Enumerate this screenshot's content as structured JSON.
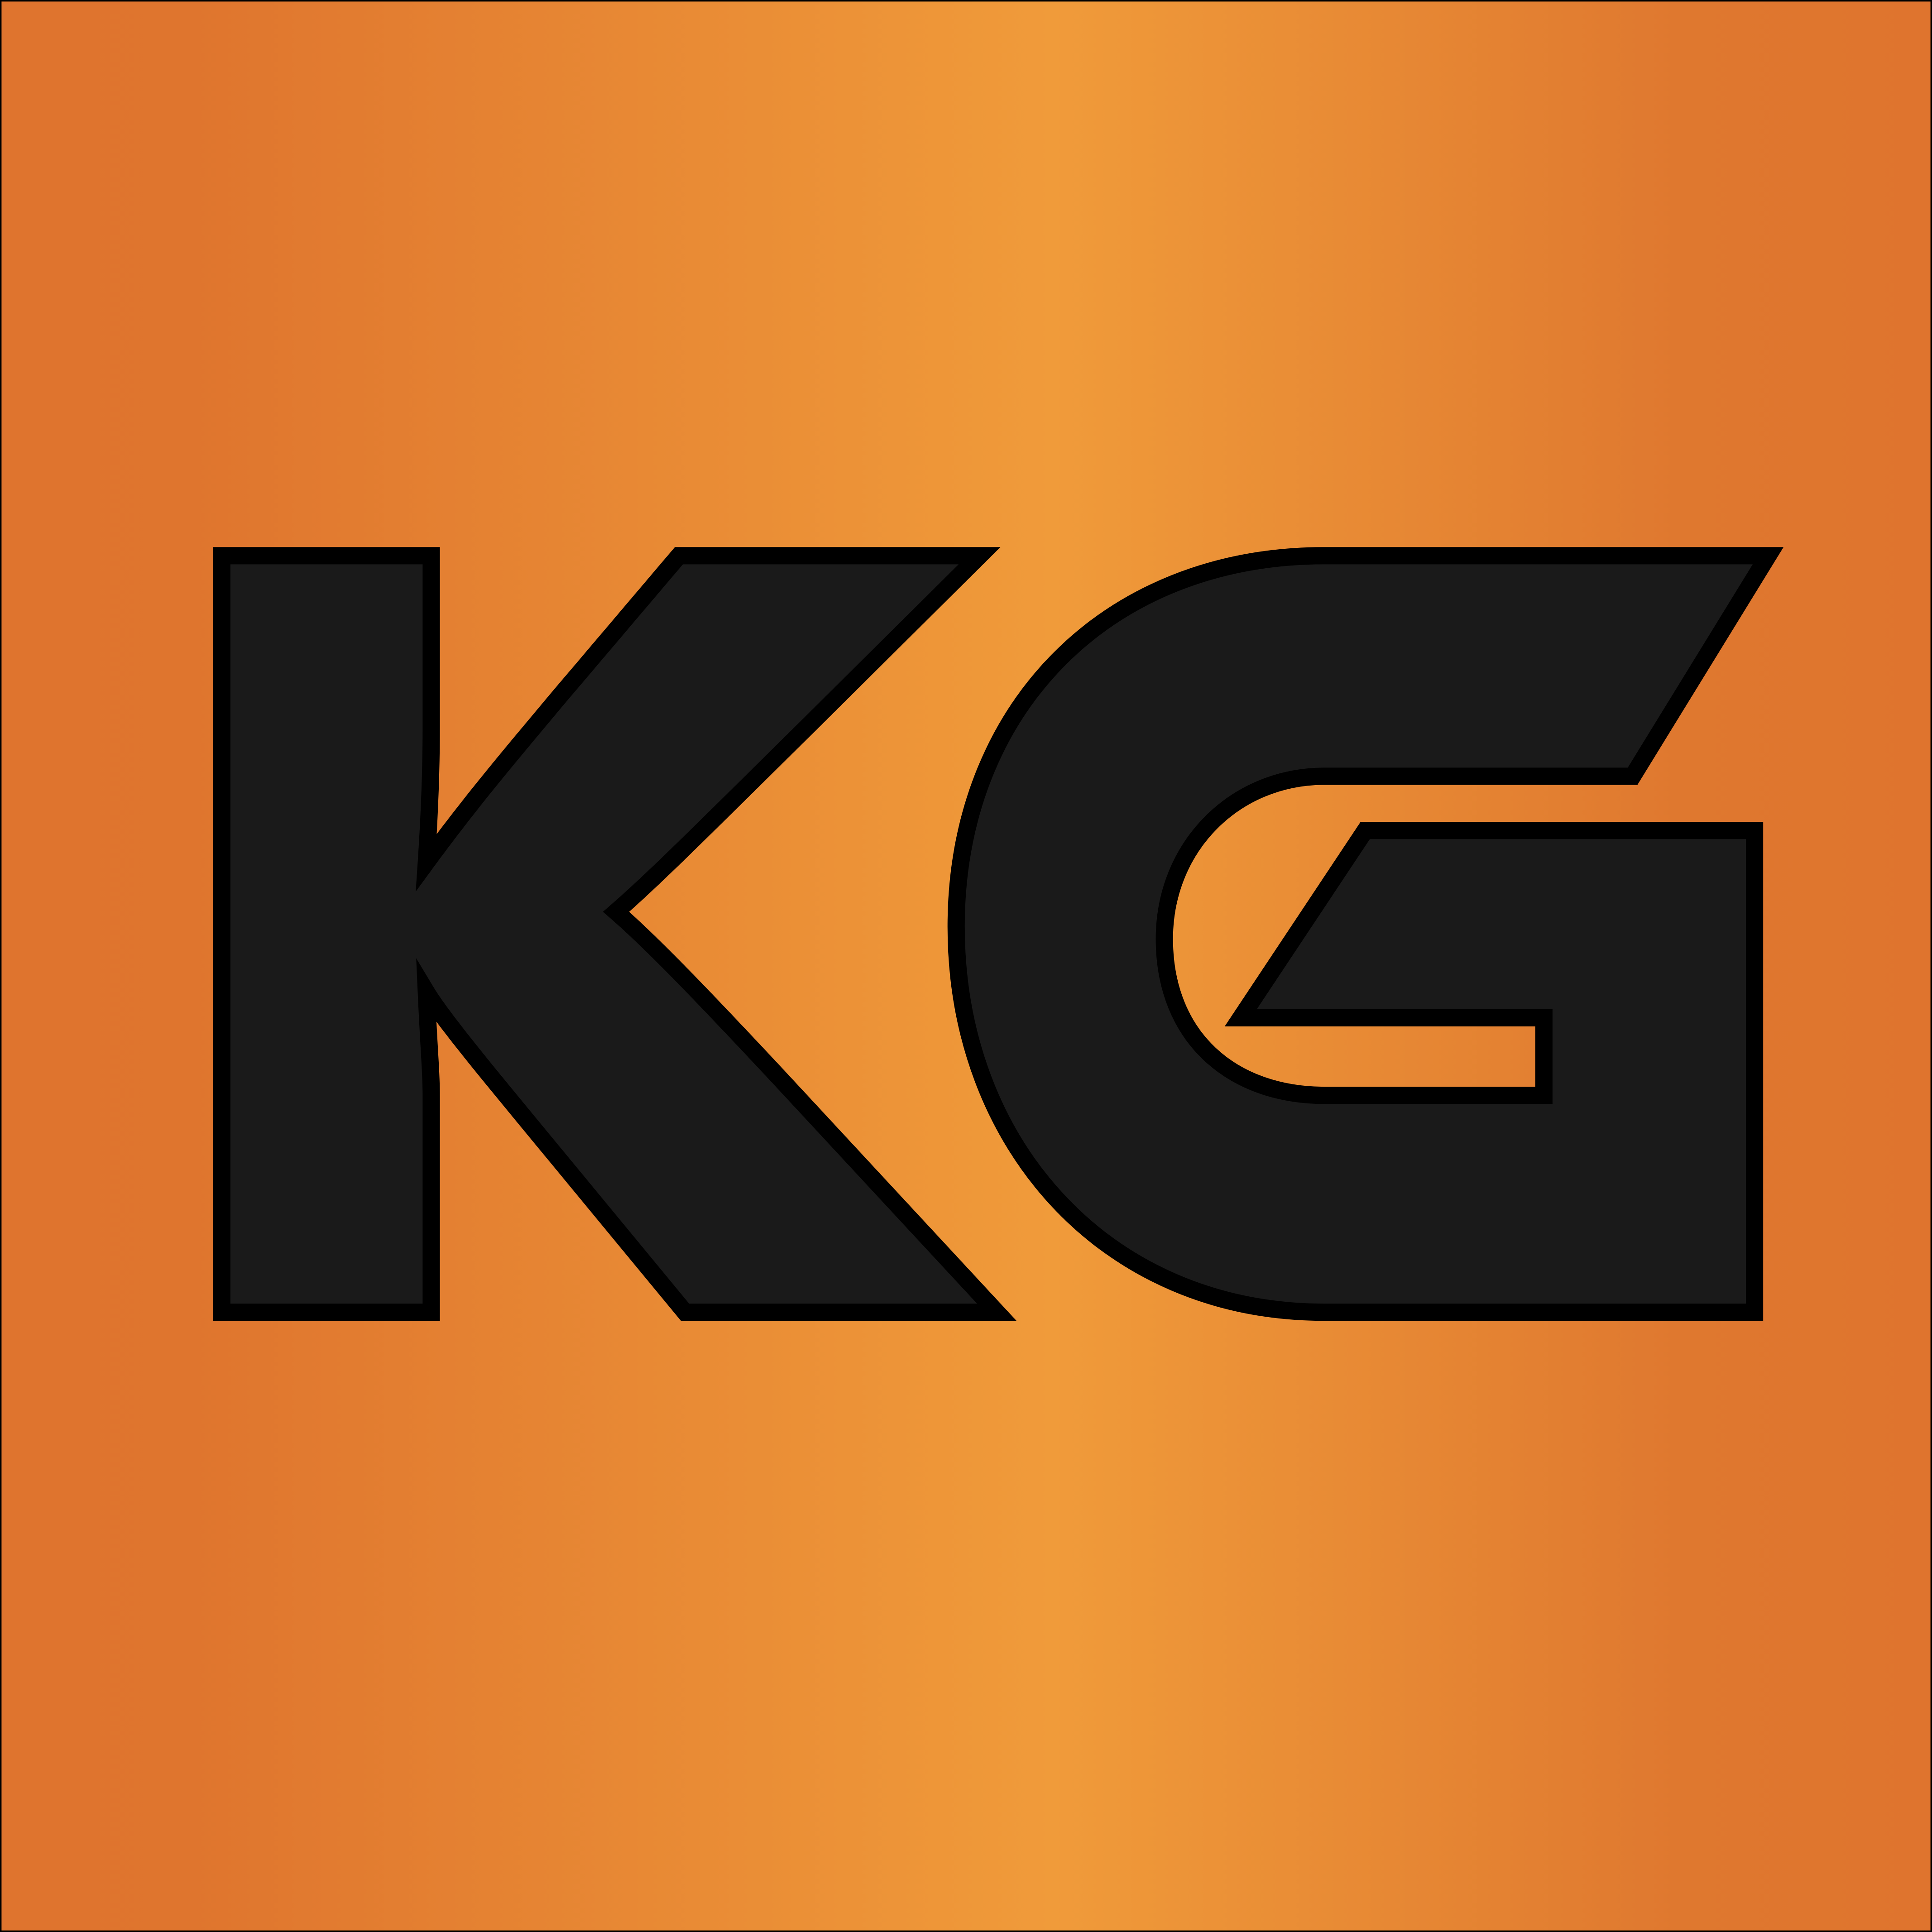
{
  "logo": {
    "monogram_text": "KG",
    "letters": [
      "K",
      "G"
    ]
  },
  "colors": {
    "background_edge": "#df752e",
    "background_center": "#f09b3a",
    "letter_fill": "#1a1a1a",
    "letter_outline": "#000000",
    "frame": "#000000"
  }
}
